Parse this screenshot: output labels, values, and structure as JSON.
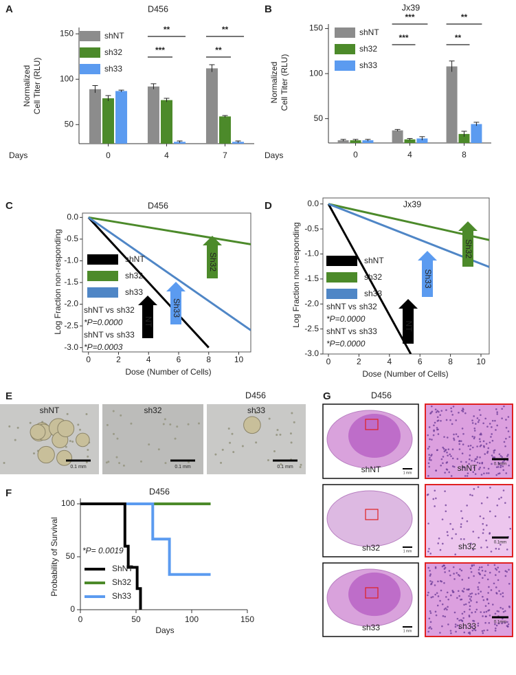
{
  "chart_data": [
    {
      "panel": "A",
      "type": "bar",
      "title": "D456",
      "ylabel": [
        "Normalized",
        "Cell Titer (RLU)"
      ],
      "xlabel": "Days",
      "categories": [
        "0",
        "4",
        "7"
      ],
      "series": [
        {
          "name": "shNT",
          "color": "#8c8c8c",
          "values": [
            89,
            92,
            112
          ],
          "errors": [
            4,
            3,
            4
          ]
        },
        {
          "name": "sh32",
          "color": "#4c8a2a",
          "values": [
            79,
            77,
            59
          ],
          "errors": [
            3,
            2,
            1
          ]
        },
        {
          "name": "sh33",
          "color": "#5b9bf0",
          "values": [
            87,
            31,
            31
          ],
          "errors": [
            1,
            1,
            1
          ]
        }
      ],
      "ylim": [
        29,
        157
      ],
      "yticks": [
        50,
        100,
        150
      ],
      "annotations": [
        "**",
        "***",
        "**",
        "**"
      ]
    },
    {
      "panel": "B",
      "type": "bar",
      "title": "Jx39",
      "ylabel": [
        "Normalized",
        "Cell Titer (RLU)"
      ],
      "xlabel": "Days",
      "categories": [
        "0",
        "4",
        "8"
      ],
      "series": [
        {
          "name": "shNT",
          "color": "#8c8c8c",
          "values": [
            26,
            37,
            108
          ],
          "errors": [
            1,
            1,
            6
          ]
        },
        {
          "name": "sh32",
          "color": "#4c8a2a",
          "values": [
            26,
            27,
            33
          ],
          "errors": [
            1,
            1,
            3
          ]
        },
        {
          "name": "sh33",
          "color": "#5b9bf0",
          "values": [
            26,
            28,
            44
          ],
          "errors": [
            1,
            2,
            2
          ]
        }
      ],
      "ylim": [
        23,
        155
      ],
      "yticks": [
        50,
        100,
        150
      ],
      "annotations": [
        "***",
        "***",
        "**",
        "**"
      ]
    },
    {
      "panel": "C",
      "type": "line",
      "title": "D456",
      "xlabel": "Dose (Number of Cells)",
      "ylabel": "Log Fraction non-responding",
      "xlim": [
        -0.4,
        10.8
      ],
      "xticks": [
        0,
        2,
        4,
        6,
        8,
        10
      ],
      "ylim": [
        -3.1,
        0.1
      ],
      "yticks": [
        {
          "value": 0,
          "label": "0.0"
        },
        -0.5,
        {
          "value": -1,
          "label": "-1.0"
        },
        -1.5,
        {
          "value": -2,
          "label": "-2.0"
        },
        -2.5,
        {
          "value": -3,
          "label": "-3.0"
        }
      ],
      "series": [
        {
          "name": "shNT",
          "color": "#000000",
          "x": [
            0,
            8
          ],
          "values": [
            0,
            -3
          ]
        },
        {
          "name": "sh32",
          "color": "#4c8a2a",
          "x": [
            0,
            10.8
          ],
          "values": [
            0,
            -0.62
          ]
        },
        {
          "name": "sh33",
          "color": "#4f86c6",
          "x": [
            0,
            10.8
          ],
          "values": [
            0,
            -2.6
          ]
        }
      ],
      "tests": [
        {
          "text": "shNT vs",
          "group": "sh32",
          "group_color": "#5b9bf0",
          "p": "*P=0.0000"
        },
        {
          "text": "shNT vs",
          "group": "sh33",
          "group_color": "#4c8a2a",
          "p": "*P=0.0003"
        }
      ],
      "arrows": [
        {
          "label": "NT",
          "color": "#000000"
        },
        {
          "label": "Sh33",
          "color": "#5b9bf0"
        },
        {
          "label": "Sh32",
          "color": "#4c8a2a"
        }
      ]
    },
    {
      "panel": "D",
      "type": "line",
      "title": "Jx39",
      "xlabel": "Dose (Number of Cells)",
      "ylabel": "Log Fraction non-responding",
      "xlim": [
        -0.36,
        10.54
      ],
      "xticks": [
        0,
        2,
        4,
        6,
        8,
        10
      ],
      "ylim": [
        -3,
        0.12
      ],
      "yticks": [
        {
          "value": 0,
          "label": "0.0"
        },
        -0.5,
        {
          "value": -1,
          "label": "-1.0"
        },
        -1.5,
        {
          "value": -2,
          "label": "-2.0"
        },
        -2.5,
        {
          "value": -3,
          "label": "-3.0"
        }
      ],
      "series": [
        {
          "name": "shNT",
          "color": "#000000",
          "x": [
            0,
            5.4
          ],
          "values": [
            0,
            -3
          ]
        },
        {
          "name": "sh32",
          "color": "#4c8a2a",
          "x": [
            0,
            10.54
          ],
          "values": [
            0,
            -0.72
          ]
        },
        {
          "name": "sh33",
          "color": "#4f86c6",
          "x": [
            0,
            10.54
          ],
          "values": [
            0,
            -1.26
          ]
        }
      ],
      "tests": [
        {
          "text": "shNT vs",
          "group": "sh32",
          "group_color": "#5b9bf0",
          "p": "*P=0.0000"
        },
        {
          "text": "shNT vs",
          "group": "sh33",
          "group_color": "#4c8a2a",
          "p": "*P=0.0000"
        }
      ],
      "arrows": [
        {
          "label": "NT",
          "color": "#000000"
        },
        {
          "label": "Sh33",
          "color": "#5b9bf0"
        },
        {
          "label": "Sh32",
          "color": "#4c8a2a"
        }
      ]
    },
    {
      "panel": "F",
      "type": "step",
      "title": "D456",
      "xlabel": "Days",
      "ylabel": "Probability of Survival",
      "xlim": [
        0,
        150
      ],
      "xticks": [
        0,
        50,
        100,
        150
      ],
      "ylim": [
        0,
        100
      ],
      "yticks": [
        0,
        50,
        100
      ],
      "series": [
        {
          "name": "ShNT",
          "color": "#000000",
          "x": [
            0,
            40,
            43,
            51,
            54
          ],
          "values": [
            100,
            60,
            40,
            20,
            0
          ]
        },
        {
          "name": "Sh32",
          "color": "#4c8a2a",
          "x": [
            0,
            117
          ],
          "values": [
            100,
            100
          ]
        },
        {
          "name": "Sh33",
          "color": "#5b9bf0",
          "x": [
            0,
            65,
            80,
            117
          ],
          "values": [
            100,
            66.7,
            33.3,
            33.3
          ]
        }
      ],
      "annotation": "*P= 0.0019"
    }
  ],
  "image_panels": [
    {
      "panel": "E",
      "title": "D456",
      "images": [
        {
          "label": "shNT",
          "scale": "0.1 mm"
        },
        {
          "label": "sh32",
          "scale": "0.1 mm"
        },
        {
          "label": "sh33",
          "scale": "0.1 mm"
        }
      ]
    },
    {
      "panel": "G",
      "title": "D456",
      "rows": [
        {
          "whole": {
            "label": "shNT",
            "scale": "1 mm"
          },
          "zoom": {
            "label": "shNT",
            "scale": "0.1mm"
          }
        },
        {
          "whole": {
            "label": "sh32",
            "scale": "1 mm"
          },
          "zoom": {
            "label": "sh32",
            "scale": "0.1mm"
          }
        },
        {
          "whole": {
            "label": "sh33",
            "scale": "1 mm"
          },
          "zoom": {
            "label": "sh33",
            "scale": "0.1mm"
          }
        }
      ]
    }
  ]
}
